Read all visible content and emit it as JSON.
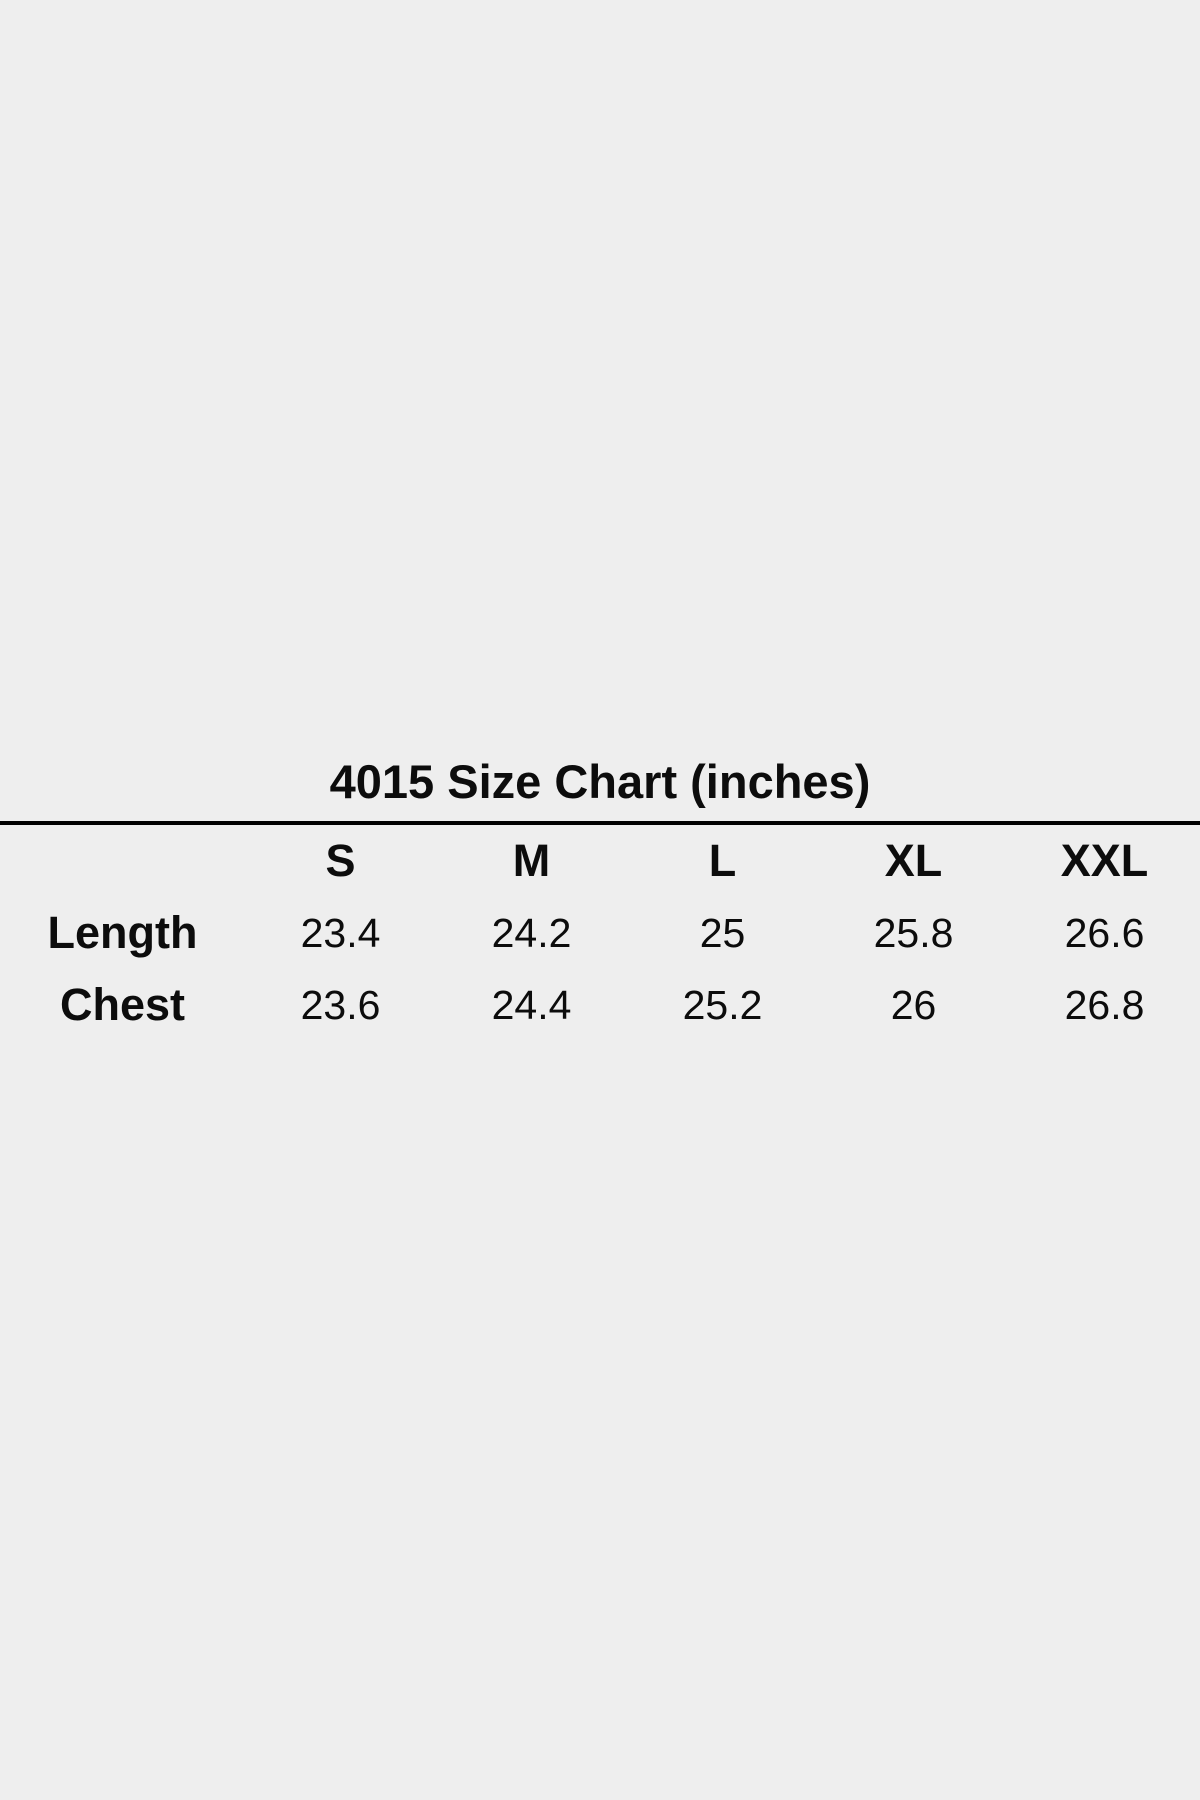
{
  "page": {
    "background_color": "#eeeeee",
    "text_color": "#0c0c0c",
    "rule_color": "#000000"
  },
  "size_chart": {
    "title": "4015 Size Chart (inches)",
    "columns": [
      "S",
      "M",
      "L",
      "XL",
      "XXL"
    ],
    "rows": [
      {
        "label": "Length",
        "values": [
          "23.4",
          "24.2",
          "25",
          "25.8",
          "26.6"
        ]
      },
      {
        "label": "Chest",
        "values": [
          "23.6",
          "24.4",
          "25.2",
          "26",
          "26.8"
        ]
      }
    ]
  },
  "chart_data": {
    "type": "table",
    "title": "4015 Size Chart (inches)",
    "units": "inches",
    "columns": [
      "S",
      "M",
      "L",
      "XL",
      "XXL"
    ],
    "rows": [
      {
        "label": "Length",
        "values": [
          23.4,
          24.2,
          25,
          25.8,
          26.6
        ]
      },
      {
        "label": "Chest",
        "values": [
          23.6,
          24.4,
          25.2,
          26,
          26.8
        ]
      }
    ]
  }
}
